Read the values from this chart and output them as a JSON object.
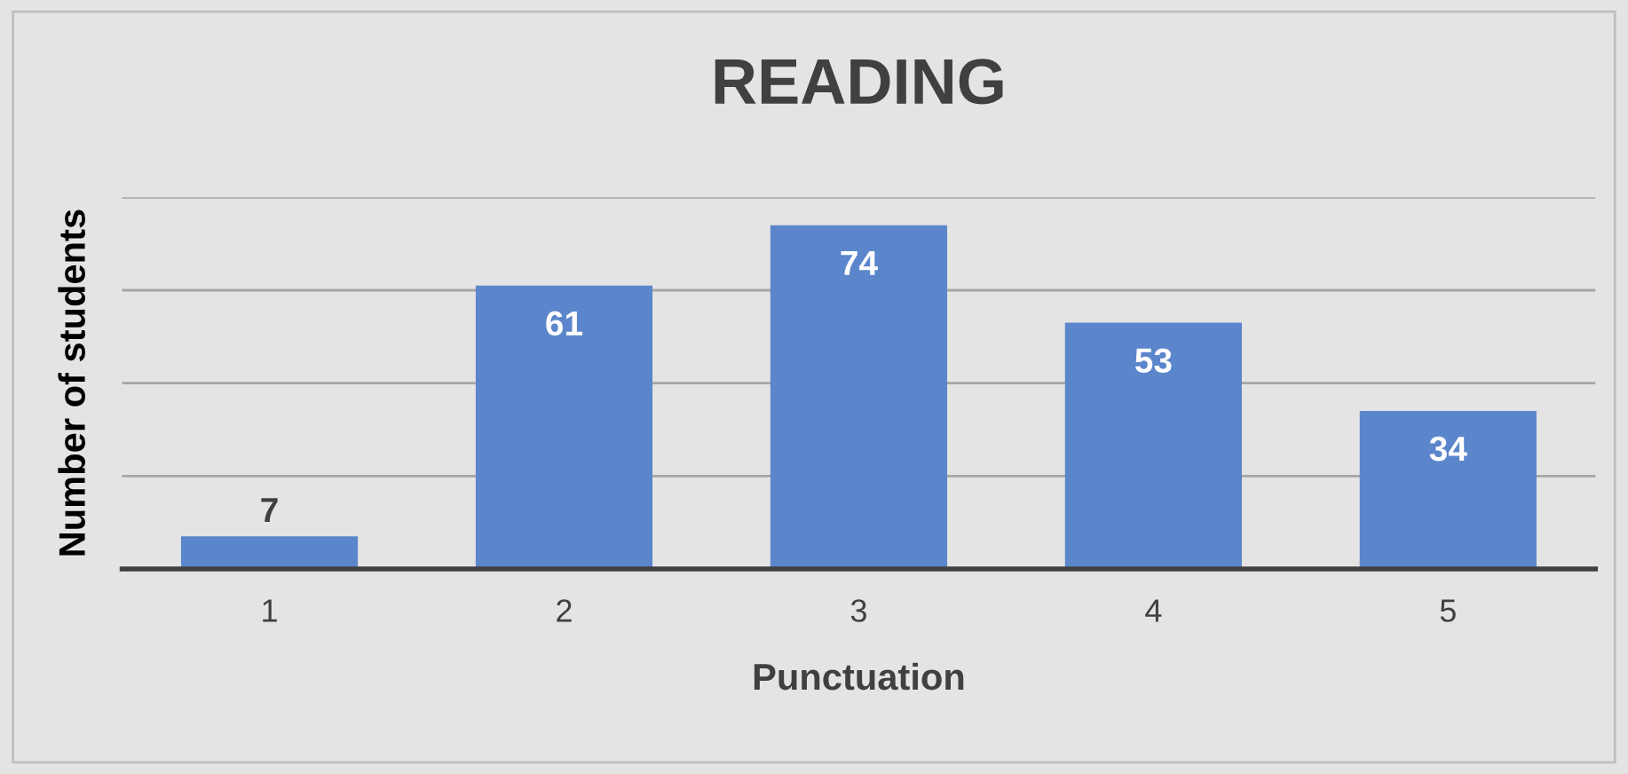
{
  "chart_data": {
    "type": "bar",
    "title": "READING",
    "xlabel": "Punctuation",
    "ylabel": "Number of students",
    "categories": [
      "1",
      "2",
      "3",
      "4",
      "5"
    ],
    "values": [
      7,
      61,
      74,
      53,
      34
    ],
    "color": "#5b86cb",
    "ylim": [
      0,
      80
    ],
    "yticks": [
      {
        "value": 0,
        "label": null
      },
      {
        "value": 20,
        "label": null
      },
      {
        "value": 40,
        "label": null
      },
      {
        "value": 60,
        "label": null
      },
      {
        "value": 80,
        "label": null
      }
    ],
    "tick_labels": "x",
    "grid": "y",
    "data_labels": true
  }
}
